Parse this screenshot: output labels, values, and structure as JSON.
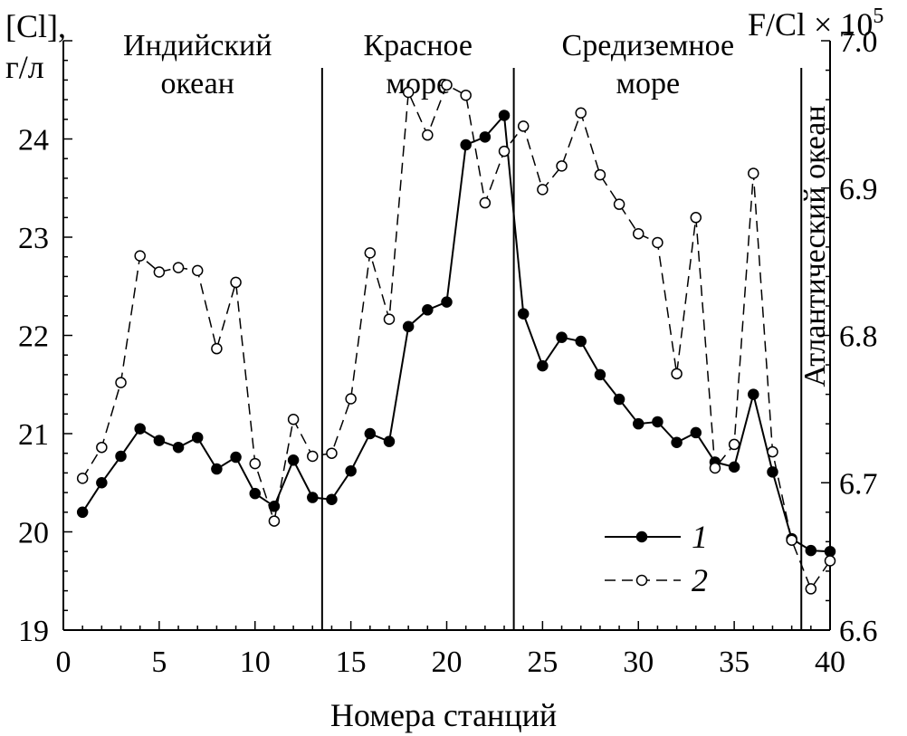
{
  "chart_data": {
    "type": "line",
    "xlabel": "Номера станций",
    "ylabel_left": [
      "[Cl],",
      "г/л"
    ],
    "ylabel_right": "F/Cl × 10",
    "ylabel_right_exp": "5",
    "xlim": [
      0,
      40
    ],
    "ylim_left": [
      19,
      25
    ],
    "ylim_right": [
      6.6,
      7.0
    ],
    "x_ticks": [
      0,
      5,
      10,
      15,
      20,
      25,
      30,
      35,
      40
    ],
    "x_tick_labels": [
      "0",
      "5",
      "10",
      "15",
      "20",
      "25",
      "30",
      "35",
      "40"
    ],
    "y_left_ticks": [
      19,
      20,
      21,
      22,
      23,
      24
    ],
    "y_left_tick_labels": [
      "19",
      "20",
      "21",
      "22",
      "23",
      "24"
    ],
    "y_right_ticks": [
      6.6,
      6.7,
      6.8,
      6.9,
      7.0
    ],
    "y_right_tick_labels": [
      "6.6",
      "6.7",
      "6.8",
      "6.9",
      "7.0"
    ],
    "grid": false,
    "legend_position": "bottom-right",
    "regions": [
      {
        "label_lines": [
          "Индийский",
          "океан"
        ],
        "x_center": 7.0
      },
      {
        "label_lines": [
          "Красное",
          "море"
        ],
        "x_center": 18.5
      },
      {
        "label_lines": [
          "Средиземное",
          "море"
        ],
        "x_center": 30.5
      },
      {
        "label_lines": [
          "Атлантический океан"
        ],
        "x_center": 39.2,
        "vertical": true
      }
    ],
    "dividers": [
      13.5,
      23.5,
      38.5
    ],
    "series": [
      {
        "name": "1",
        "axis": "left",
        "style": "solid",
        "marker": "filled-circle",
        "x": [
          1,
          2,
          3,
          4,
          5,
          6,
          7,
          8,
          9,
          10,
          11,
          12,
          13,
          14,
          15,
          16,
          17,
          18,
          19,
          20,
          21,
          22,
          23,
          24,
          25,
          26,
          27,
          28,
          29,
          30,
          31,
          32,
          33,
          34,
          35,
          36,
          37,
          38,
          39,
          40
        ],
        "values": [
          20.2,
          20.5,
          20.77,
          21.05,
          20.93,
          20.86,
          20.96,
          20.64,
          20.76,
          20.39,
          20.26,
          20.73,
          20.35,
          20.33,
          20.62,
          21.0,
          20.92,
          22.09,
          22.26,
          22.34,
          23.94,
          24.02,
          24.24,
          22.22,
          21.69,
          21.98,
          21.94,
          21.6,
          21.35,
          21.1,
          21.12,
          20.91,
          21.01,
          20.71,
          20.66,
          21.4,
          20.61,
          19.93,
          19.81,
          19.8
        ]
      },
      {
        "name": "2",
        "axis": "right",
        "style": "dashed",
        "marker": "open-circle",
        "x": [
          1,
          2,
          3,
          4,
          5,
          6,
          7,
          8,
          9,
          10,
          11,
          12,
          13,
          14,
          15,
          16,
          17,
          18,
          19,
          20,
          21,
          22,
          23,
          24,
          25,
          26,
          27,
          28,
          29,
          30,
          31,
          32,
          33,
          34,
          35,
          36,
          37,
          38,
          39,
          40
        ],
        "values": [
          6.703,
          6.724,
          6.768,
          6.854,
          6.843,
          6.846,
          6.844,
          6.791,
          6.836,
          6.713,
          6.674,
          6.743,
          6.718,
          6.72,
          6.757,
          6.856,
          6.811,
          6.965,
          6.936,
          6.97,
          6.963,
          6.89,
          6.925,
          6.942,
          6.899,
          6.915,
          6.951,
          6.909,
          6.889,
          6.869,
          6.863,
          6.774,
          6.88,
          6.71,
          6.726,
          6.91,
          6.721,
          6.661,
          6.628,
          6.647
        ]
      }
    ]
  }
}
